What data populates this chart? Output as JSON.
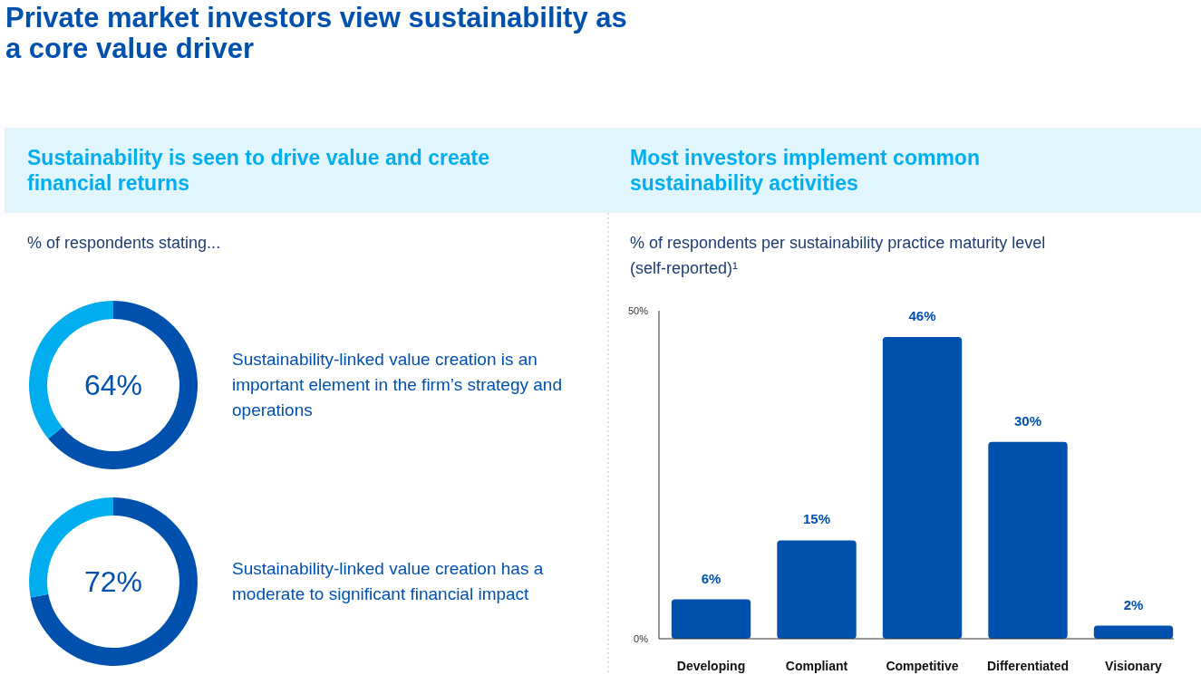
{
  "chart_data": [
    {
      "type": "other",
      "title": "Private market investors view sustainability as a core value driver"
    },
    {
      "type": "donut",
      "title": "Sustainability is seen to drive value and create financial returns",
      "subtitle": "% of respondents stating...",
      "categories": [
        null,
        null
      ],
      "values": [
        64,
        36
      ],
      "colors": [
        "#0050ae",
        "#00aeef"
      ],
      "annotations": [
        "64%",
        "Sustainability-linked value creation is an important element in the firm’s strategy and operations"
      ]
    },
    {
      "type": "donut",
      "categories": [
        null,
        null
      ],
      "values": [
        72,
        28
      ],
      "colors": [
        "#0050ae",
        "#00aeef"
      ],
      "annotations": [
        "72%",
        "Sustainability-linked value creation has a moderate to significant financial impact"
      ]
    },
    {
      "type": "bar",
      "title": "Most investors implement common sustainability activities",
      "subtitle": "% of respondents per sustainability practice maturity level (self-reported)¹",
      "categories": [
        "Developing",
        "Compliant",
        "Competitive",
        "Differentiated",
        "Visionary"
      ],
      "values": [
        6,
        15,
        46,
        30,
        2
      ],
      "color": "#0050ae",
      "ylim": [
        0,
        50
      ],
      "yticks": [
        {
          "value": 0,
          "label": "0%"
        },
        {
          "value": 50,
          "label": "50%"
        }
      ],
      "value_labels": [
        "6%",
        "15%",
        "46%",
        "30%",
        "2%"
      ]
    }
  ]
}
